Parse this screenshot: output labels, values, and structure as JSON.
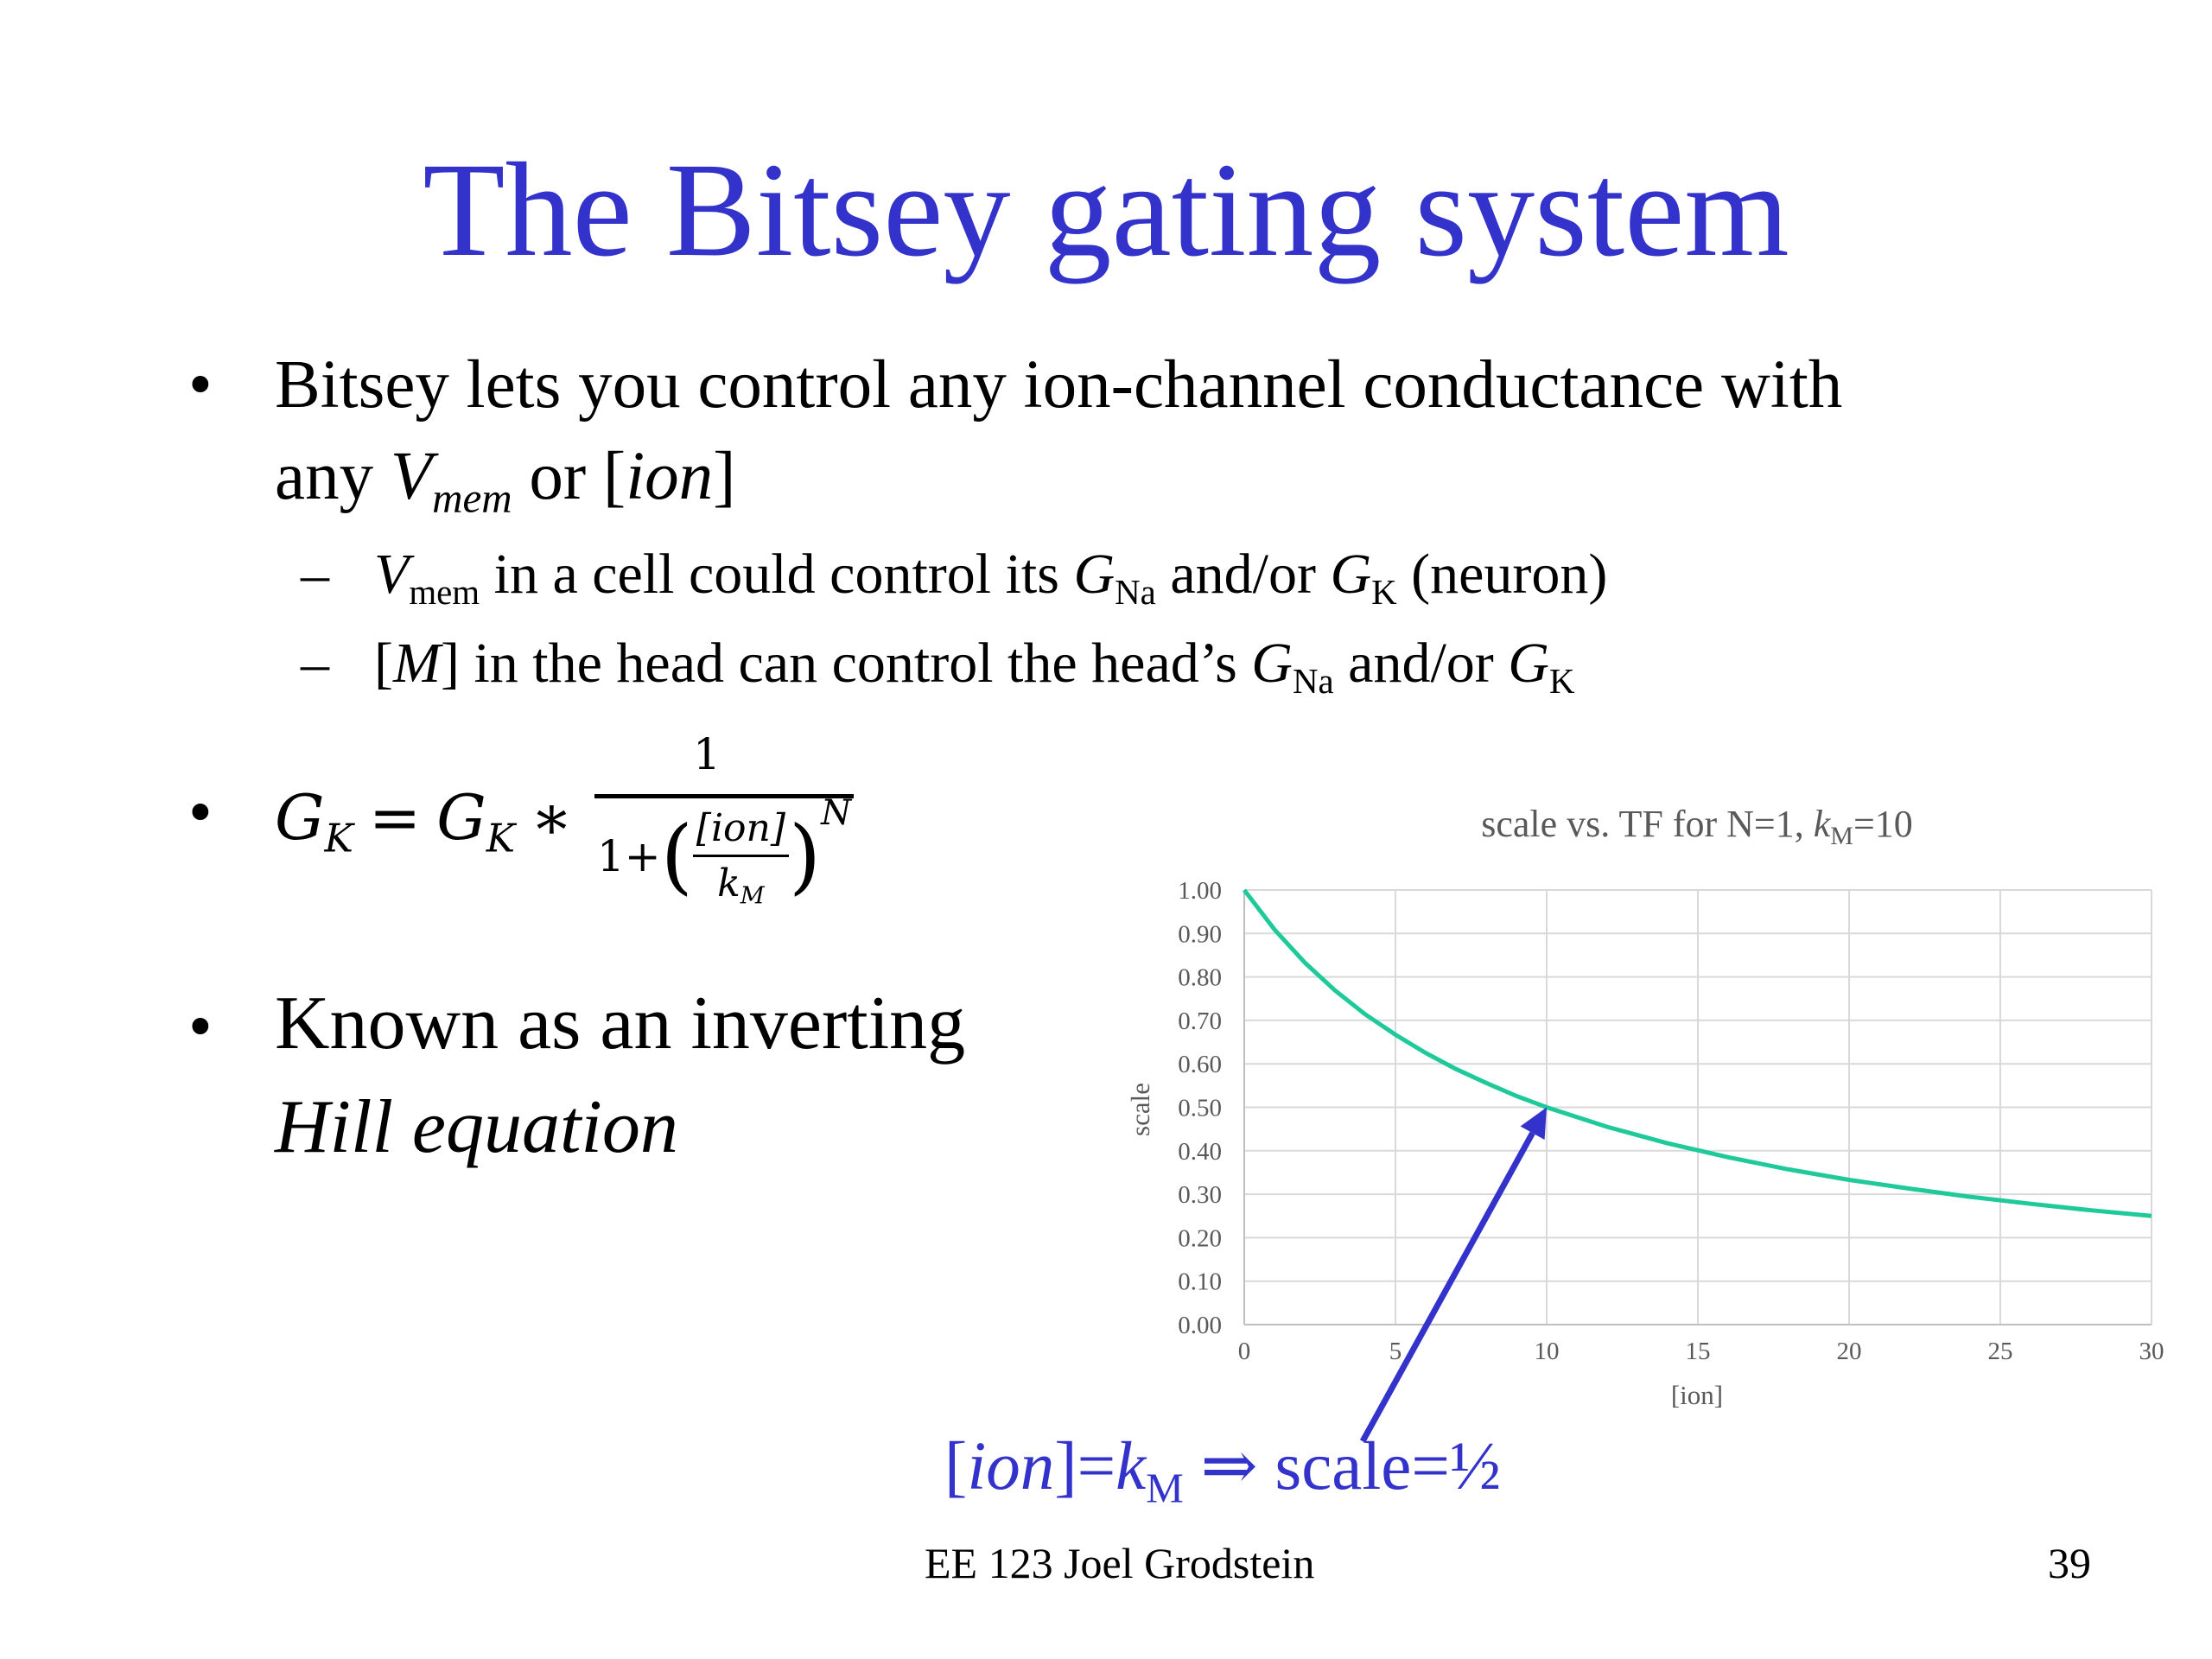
{
  "slide": {
    "title": "The Bitsey gating system",
    "bullet1": {
      "line1": "Bitsey lets you control any ion-channel conductance with",
      "line2_pre": "any ",
      "v": "V",
      "v_sub": "mem",
      "line2_mid": " or [",
      "ion": "ion",
      "line2_end": "]"
    },
    "sub1": {
      "v": "V",
      "v_sub": "mem",
      "text1": " in a cell could control its ",
      "g1": "G",
      "g1_sub": "Na",
      "text2": " and/or ",
      "g2": "G",
      "g2_sub": "K",
      "text3": " (neuron)"
    },
    "sub2": {
      "open": "[",
      "m": "M",
      "text1": "] in the head can control the head’s ",
      "g1": "G",
      "g1_sub": "Na",
      "text2": " and/or ",
      "g2": "G",
      "g2_sub": "K"
    },
    "equation": {
      "lhs_g": "G",
      "lhs_sub": "K",
      "eq": "=",
      "rhs_g": "G",
      "rhs_sub": "K",
      "star": "∗",
      "numerator": "1",
      "den_one": "1+",
      "inner_num": "[ion]",
      "inner_den_k": "k",
      "inner_den_sub": "M",
      "exponent": "N"
    },
    "bullet3": {
      "line1": "Known as an inverting",
      "line2": "Hill equation"
    },
    "bullet_symbol": "•",
    "dash_symbol": "–",
    "annotation": {
      "ion_open": "[",
      "ion": "ion",
      "ion_close": "]=",
      "k": "k",
      "k_sub": "M",
      "rest": " ⇒ scale=½"
    },
    "footer": {
      "center": "EE 123 Joel Grodstein",
      "page": "39"
    },
    "colors": {
      "title": "#3333cc",
      "annotation": "#3333cc",
      "curve": "#1fc99a",
      "grid": "#d9d9d9",
      "axis_text": "#595959"
    }
  },
  "chart_data": {
    "type": "line",
    "title_parts": {
      "pre": "scale vs. TF for N=1, ",
      "k": "k",
      "k_sub": "M",
      "post": "=10"
    },
    "xlabel": "[ion]",
    "ylabel": "scale",
    "xlim": [
      0,
      30
    ],
    "ylim": [
      0,
      1
    ],
    "x_ticks": [
      "0",
      "5",
      "10",
      "15",
      "20",
      "25",
      "30"
    ],
    "y_ticks": [
      "0.00",
      "0.10",
      "0.20",
      "0.30",
      "0.40",
      "0.50",
      "0.60",
      "0.70",
      "0.80",
      "0.90",
      "1.00"
    ],
    "grid": true,
    "series": [
      {
        "x": [
          0,
          1,
          2,
          3,
          4,
          5,
          6,
          7,
          8,
          9,
          10,
          12,
          14,
          16,
          18,
          20,
          22,
          24,
          26,
          28,
          30
        ],
        "y": [
          1.0,
          0.909,
          0.833,
          0.769,
          0.714,
          0.667,
          0.625,
          0.588,
          0.556,
          0.526,
          0.5,
          0.455,
          0.417,
          0.385,
          0.357,
          0.333,
          0.313,
          0.294,
          0.278,
          0.263,
          0.25
        ]
      }
    ],
    "annotation_arrow_target": {
      "x": 10,
      "y": 0.5
    }
  }
}
